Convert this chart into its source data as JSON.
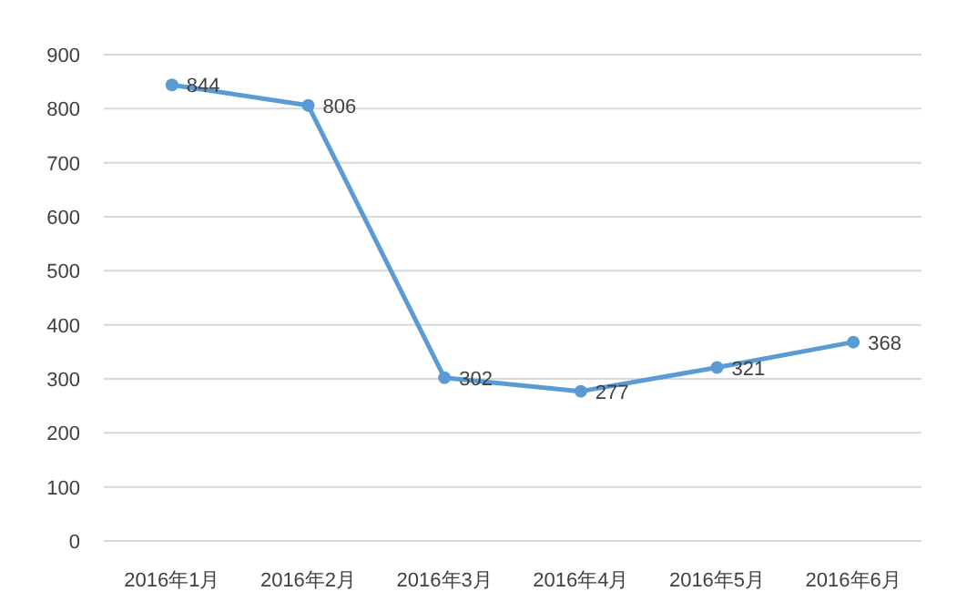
{
  "chart_data": {
    "type": "line",
    "categories": [
      "2016年1月",
      "2016年2月",
      "2016年3月",
      "2016年4月",
      "2016年5月",
      "2016年6月"
    ],
    "values": [
      844,
      806,
      302,
      277,
      321,
      368
    ],
    "color": "#5b9bd5",
    "ylim": [
      0,
      900
    ],
    "yticks": [
      0,
      100,
      200,
      300,
      400,
      500,
      600,
      700,
      800,
      900
    ],
    "grid": "y",
    "marker": "circle",
    "line_style": "solid",
    "data_labels": true
  }
}
